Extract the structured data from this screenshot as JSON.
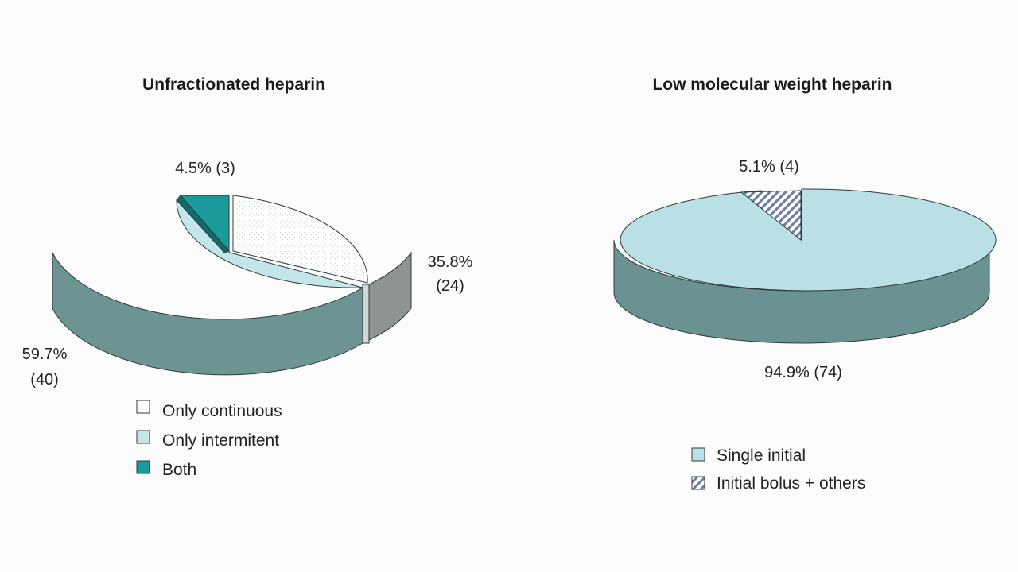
{
  "colors": {
    "background": "#fbfcfb",
    "continuous": "#ffffff",
    "intermittent": "#c3e6ea",
    "intermittent_side": "#6c9493",
    "both": "#1a9a9a",
    "both_side": "#126b6b",
    "continuous_side": "#8f9493",
    "single": "#b9e0e4",
    "single_side": "#6a9292",
    "hatch": "#6b7c9e",
    "outline": "#2f3a3a"
  },
  "chart_data": [
    {
      "type": "pie",
      "style": "3d",
      "title": "Unfractionated heparin",
      "series": [
        {
          "name": "Only continuous",
          "percent": 35.8,
          "count": 24,
          "label": "35.8%",
          "label_count": "(24)",
          "fill": "dotted-white"
        },
        {
          "name": "Only intermitent",
          "percent": 59.7,
          "count": 40,
          "label": "59.7%",
          "label_count": "(40)",
          "fill": "light-teal"
        },
        {
          "name": "Both",
          "percent": 4.5,
          "count": 3,
          "label": "4.5% (3)",
          "fill": "dark-teal",
          "exploded": true
        }
      ],
      "legend": {
        "placement": "bottom",
        "items": [
          "Only continuous",
          "Only intermitent",
          "Both"
        ]
      }
    },
    {
      "type": "pie",
      "style": "3d",
      "title": "Low molecular weight heparin",
      "series": [
        {
          "name": "Single initial",
          "percent": 94.9,
          "count": 74,
          "label": "94.9% (74)",
          "fill": "light-teal"
        },
        {
          "name": "Initial bolus + others",
          "percent": 5.1,
          "count": 4,
          "label": "5.1% (4)",
          "fill": "hatched",
          "exploded": true
        }
      ],
      "legend": {
        "placement": "bottom",
        "items": [
          "Single initial",
          "Initial bolus + others"
        ]
      }
    }
  ]
}
